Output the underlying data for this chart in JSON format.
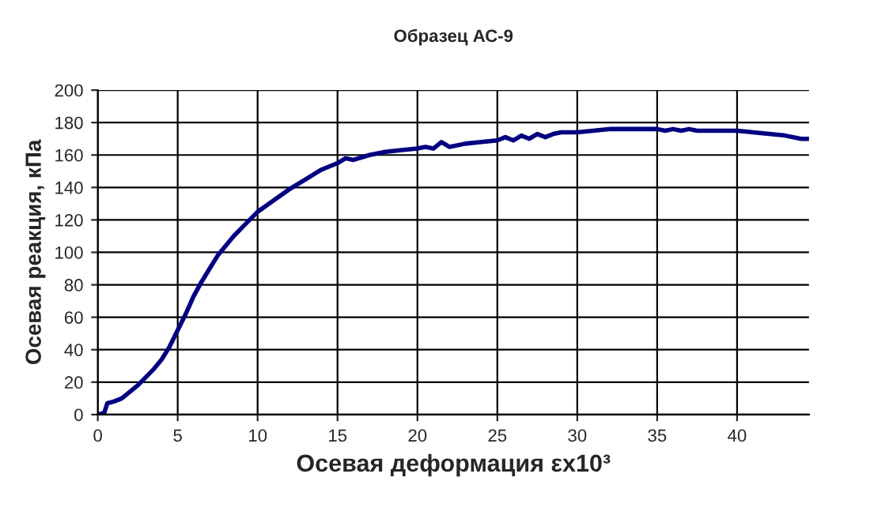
{
  "chart_data": {
    "type": "line",
    "title": "Образец АС-9",
    "xlabel": "Осевая деформация εx10³",
    "ylabel": "Осевая реакция, кПа",
    "xlim": [
      0,
      44.5
    ],
    "xticks": [
      0,
      5,
      10,
      15,
      20,
      25,
      30,
      35,
      40
    ],
    "ylim": [
      0,
      200
    ],
    "yticks": [
      0,
      20,
      40,
      60,
      80,
      100,
      120,
      140,
      160,
      180,
      200
    ],
    "grid": true,
    "marker": "none",
    "line_style": "solid",
    "series": [
      {
        "color": "#000080",
        "x": [
          0,
          0.4,
          0.6,
          1,
          1.5,
          2,
          2.5,
          3,
          3.5,
          4,
          4.5,
          5,
          5.5,
          6,
          6.5,
          7,
          7.5,
          8,
          8.5,
          9,
          9.5,
          10,
          11,
          12,
          13,
          14,
          15,
          15.5,
          16,
          17,
          18,
          19,
          20,
          20.5,
          21,
          21.5,
          22,
          23,
          24,
          25,
          25.5,
          26,
          26.5,
          27,
          27.5,
          28,
          28.5,
          29,
          30,
          31,
          32,
          33,
          34,
          35,
          35.5,
          36,
          36.5,
          37,
          37.5,
          38,
          39,
          40,
          41,
          42,
          43,
          44,
          44.5
        ],
        "values": [
          0,
          1,
          7,
          8,
          10,
          14,
          18,
          23,
          28,
          34,
          42,
          52,
          62,
          73,
          82,
          90,
          98,
          104,
          110,
          115,
          120,
          125,
          132,
          139,
          145,
          151,
          155,
          158,
          157,
          160,
          162,
          163,
          164,
          165,
          164,
          168,
          165,
          167,
          168,
          169,
          171,
          169,
          172,
          170,
          173,
          171,
          173,
          174,
          174,
          175,
          176,
          176,
          176,
          176,
          175,
          176,
          175,
          176,
          175,
          175,
          175,
          175,
          174,
          173,
          172,
          170,
          170
        ]
      }
    ]
  }
}
